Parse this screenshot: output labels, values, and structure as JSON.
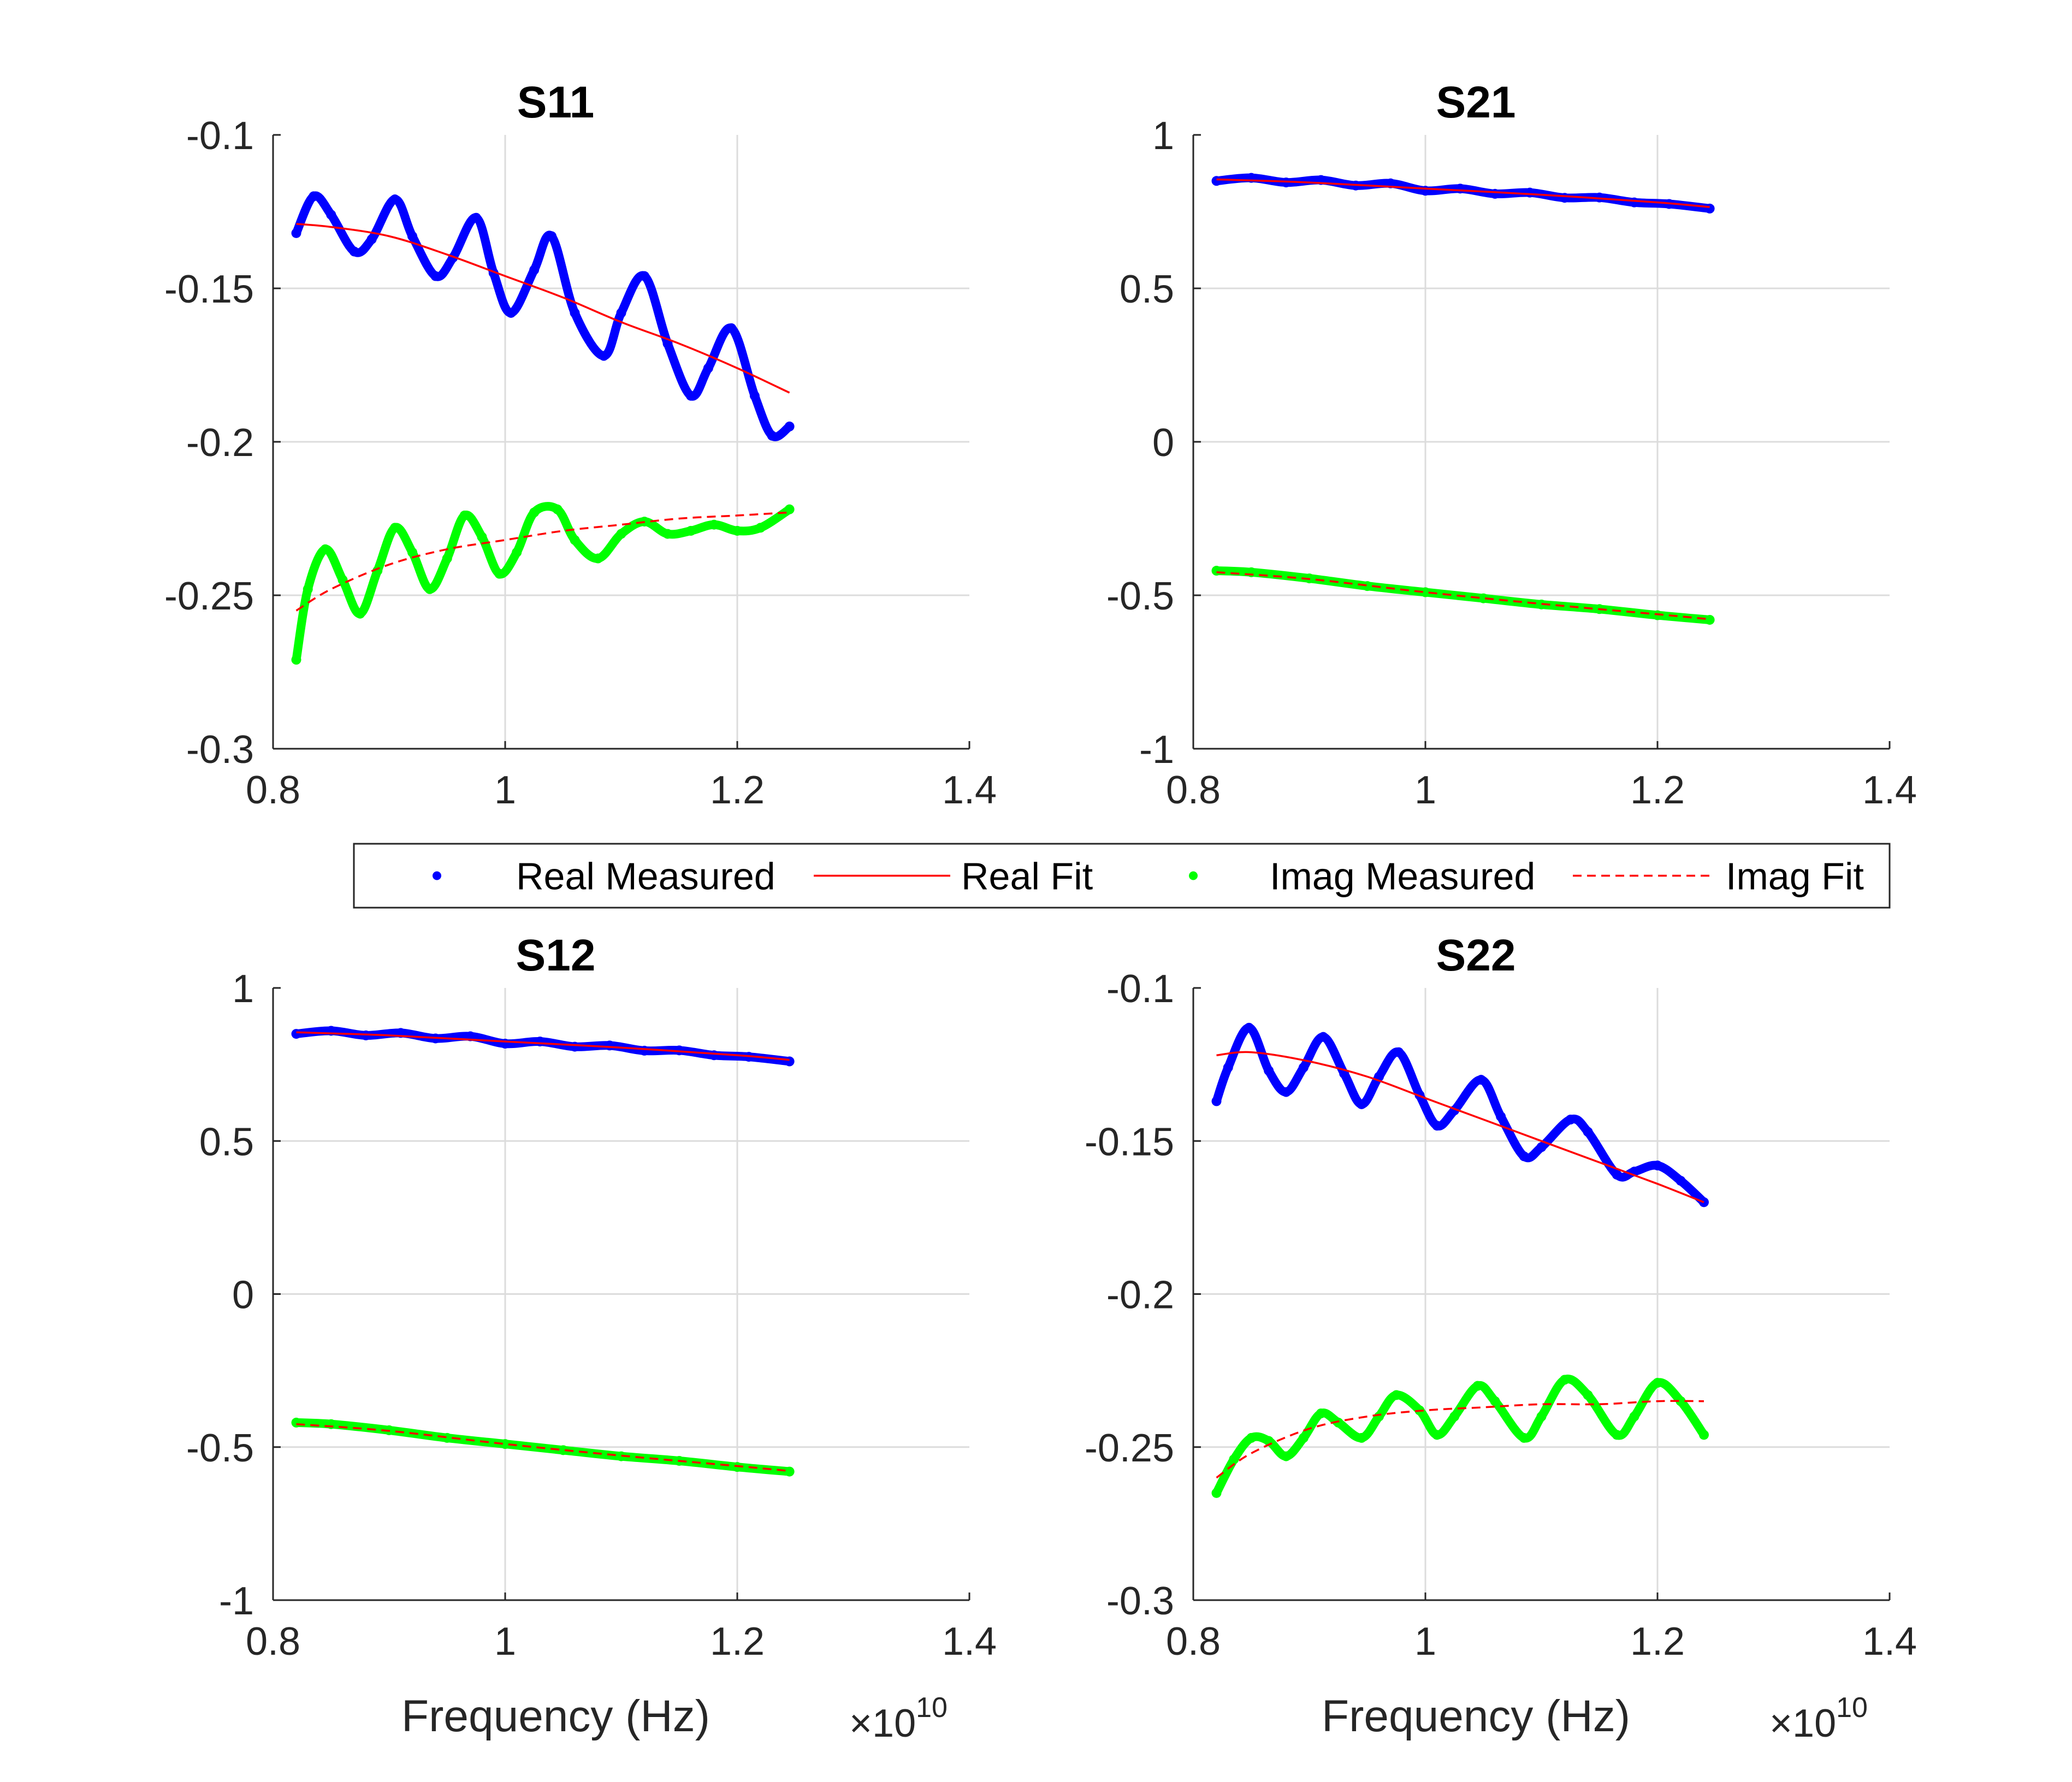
{
  "chart_data": [
    {
      "type": "line",
      "title": "S11",
      "xlabel": "",
      "ylabel": "",
      "xlim": [
        0.8,
        1.4
      ],
      "ylim": [
        -0.3,
        -0.1
      ],
      "xticks": [
        "0.8",
        "1",
        "1.2",
        "1.4"
      ],
      "yticks": [
        "-0.1",
        "-0.15",
        "-0.2",
        "-0.25",
        "-0.3"
      ],
      "x_exponent": "",
      "grid": true,
      "series": [
        {
          "name": "Real Measured",
          "color": "#0000ff",
          "style": "dots",
          "x": [
            0.82,
            0.835,
            0.85,
            0.87,
            0.885,
            0.905,
            0.92,
            0.94,
            0.955,
            0.975,
            0.99,
            1.005,
            1.025,
            1.04,
            1.06,
            1.085,
            1.1,
            1.12,
            1.14,
            1.16,
            1.175,
            1.195,
            1.215,
            1.23,
            1.245
          ],
          "y": [
            -0.132,
            -0.12,
            -0.126,
            -0.138,
            -0.134,
            -0.121,
            -0.133,
            -0.146,
            -0.14,
            -0.127,
            -0.145,
            -0.158,
            -0.144,
            -0.133,
            -0.158,
            -0.172,
            -0.158,
            -0.146,
            -0.168,
            -0.185,
            -0.176,
            -0.163,
            -0.185,
            -0.198,
            -0.195
          ]
        },
        {
          "name": "Real Fit",
          "color": "#ff0000",
          "style": "solid",
          "x": [
            0.82,
            0.85,
            0.9,
            0.95,
            1.0,
            1.05,
            1.1,
            1.15,
            1.2,
            1.245
          ],
          "y": [
            -0.129,
            -0.13,
            -0.133,
            -0.139,
            -0.146,
            -0.153,
            -0.161,
            -0.168,
            -0.176,
            -0.184
          ]
        },
        {
          "name": "Imag Measured",
          "color": "#00ff00",
          "style": "dots",
          "x": [
            0.82,
            0.83,
            0.845,
            0.86,
            0.875,
            0.89,
            0.905,
            0.92,
            0.935,
            0.95,
            0.965,
            0.98,
            0.995,
            1.01,
            1.025,
            1.045,
            1.06,
            1.08,
            1.1,
            1.12,
            1.14,
            1.16,
            1.18,
            1.2,
            1.22,
            1.245
          ],
          "y": [
            -0.271,
            -0.248,
            -0.235,
            -0.245,
            -0.256,
            -0.242,
            -0.228,
            -0.236,
            -0.248,
            -0.238,
            -0.224,
            -0.231,
            -0.243,
            -0.236,
            -0.223,
            -0.222,
            -0.232,
            -0.238,
            -0.23,
            -0.226,
            -0.23,
            -0.229,
            -0.227,
            -0.229,
            -0.228,
            -0.222
          ]
        },
        {
          "name": "Imag Fit",
          "color": "#ff0000",
          "style": "dashed",
          "x": [
            0.82,
            0.85,
            0.9,
            0.95,
            1.0,
            1.05,
            1.1,
            1.15,
            1.2,
            1.245
          ],
          "y": [
            -0.255,
            -0.248,
            -0.24,
            -0.235,
            -0.232,
            -0.229,
            -0.227,
            -0.225,
            -0.224,
            -0.223
          ]
        }
      ]
    },
    {
      "type": "line",
      "title": "S21",
      "xlabel": "",
      "ylabel": "",
      "xlim": [
        0.8,
        1.4
      ],
      "ylim": [
        -1,
        1
      ],
      "xticks": [
        "0.8",
        "1",
        "1.2",
        "1.4"
      ],
      "yticks": [
        "1",
        "0.5",
        "0",
        "-0.5",
        "-1"
      ],
      "x_exponent": "",
      "grid": true,
      "series": [
        {
          "name": "Real Measured",
          "color": "#0000ff",
          "style": "dots",
          "x": [
            0.82,
            0.85,
            0.88,
            0.91,
            0.94,
            0.97,
            1.0,
            1.03,
            1.06,
            1.09,
            1.12,
            1.15,
            1.18,
            1.21,
            1.245
          ],
          "y": [
            0.85,
            0.86,
            0.845,
            0.853,
            0.835,
            0.842,
            0.818,
            0.825,
            0.808,
            0.812,
            0.795,
            0.796,
            0.78,
            0.775,
            0.76
          ]
        },
        {
          "name": "Real Fit",
          "color": "#ff0000",
          "style": "solid",
          "x": [
            0.82,
            0.9,
            1.0,
            1.1,
            1.2,
            1.245
          ],
          "y": [
            0.855,
            0.845,
            0.825,
            0.805,
            0.78,
            0.765
          ]
        },
        {
          "name": "Imag Measured",
          "color": "#00ff00",
          "style": "dots",
          "x": [
            0.82,
            0.85,
            0.9,
            0.95,
            1.0,
            1.05,
            1.1,
            1.15,
            1.2,
            1.245
          ],
          "y": [
            -0.42,
            -0.425,
            -0.445,
            -0.47,
            -0.49,
            -0.51,
            -0.53,
            -0.545,
            -0.565,
            -0.58
          ]
        },
        {
          "name": "Imag Fit",
          "color": "#ff0000",
          "style": "dashed",
          "x": [
            0.82,
            0.9,
            1.0,
            1.1,
            1.2,
            1.245
          ],
          "y": [
            -0.425,
            -0.447,
            -0.49,
            -0.528,
            -0.562,
            -0.578
          ]
        }
      ]
    },
    {
      "type": "line",
      "title": "S12",
      "xlabel": "Frequency (Hz)",
      "ylabel": "",
      "xlim": [
        0.8,
        1.4
      ],
      "ylim": [
        -1,
        1
      ],
      "xticks": [
        "0.8",
        "1",
        "1.2",
        "1.4"
      ],
      "yticks": [
        "1",
        "0.5",
        "0",
        "-0.5",
        "-1"
      ],
      "x_exponent": "10",
      "grid": true,
      "series": [
        {
          "name": "Real Measured",
          "color": "#0000ff",
          "style": "dots",
          "x": [
            0.82,
            0.85,
            0.88,
            0.91,
            0.94,
            0.97,
            1.0,
            1.03,
            1.06,
            1.09,
            1.12,
            1.15,
            1.18,
            1.21,
            1.245
          ],
          "y": [
            0.85,
            0.86,
            0.845,
            0.853,
            0.835,
            0.842,
            0.818,
            0.825,
            0.808,
            0.812,
            0.795,
            0.796,
            0.78,
            0.775,
            0.76
          ]
        },
        {
          "name": "Real Fit",
          "color": "#ff0000",
          "style": "solid",
          "x": [
            0.82,
            0.9,
            1.0,
            1.1,
            1.2,
            1.245
          ],
          "y": [
            0.855,
            0.845,
            0.825,
            0.805,
            0.78,
            0.765
          ]
        },
        {
          "name": "Imag Measured",
          "color": "#00ff00",
          "style": "dots",
          "x": [
            0.82,
            0.85,
            0.9,
            0.95,
            1.0,
            1.05,
            1.1,
            1.15,
            1.2,
            1.245
          ],
          "y": [
            -0.42,
            -0.425,
            -0.445,
            -0.47,
            -0.49,
            -0.51,
            -0.53,
            -0.545,
            -0.565,
            -0.58
          ]
        },
        {
          "name": "Imag Fit",
          "color": "#ff0000",
          "style": "dashed",
          "x": [
            0.82,
            0.9,
            1.0,
            1.1,
            1.2,
            1.245
          ],
          "y": [
            -0.425,
            -0.447,
            -0.49,
            -0.528,
            -0.562,
            -0.578
          ]
        }
      ]
    },
    {
      "type": "line",
      "title": "S22",
      "xlabel": "Frequency (Hz)",
      "ylabel": "",
      "xlim": [
        0.8,
        1.4
      ],
      "ylim": [
        -0.3,
        -0.1
      ],
      "xticks": [
        "0.8",
        "1",
        "1.2",
        "1.4"
      ],
      "yticks": [
        "-0.1",
        "-0.15",
        "-0.2",
        "-0.25",
        "-0.3"
      ],
      "x_exponent": "10",
      "grid": true,
      "series": [
        {
          "name": "Real Measured",
          "color": "#0000ff",
          "style": "dots",
          "x": [
            0.82,
            0.83,
            0.848,
            0.865,
            0.88,
            0.895,
            0.912,
            0.93,
            0.945,
            0.96,
            0.977,
            0.995,
            1.01,
            1.025,
            1.048,
            1.065,
            1.085,
            1.1,
            1.125,
            1.14,
            1.165,
            1.18,
            1.2,
            1.22,
            1.24
          ],
          "y": [
            -0.137,
            -0.126,
            -0.113,
            -0.127,
            -0.134,
            -0.126,
            -0.116,
            -0.128,
            -0.138,
            -0.129,
            -0.121,
            -0.135,
            -0.145,
            -0.14,
            -0.13,
            -0.142,
            -0.155,
            -0.152,
            -0.143,
            -0.147,
            -0.161,
            -0.16,
            -0.158,
            -0.163,
            -0.17
          ]
        },
        {
          "name": "Real Fit",
          "color": "#ff0000",
          "style": "solid",
          "x": [
            0.82,
            0.85,
            0.9,
            0.95,
            1.0,
            1.05,
            1.1,
            1.15,
            1.2,
            1.24
          ],
          "y": [
            -0.122,
            -0.121,
            -0.124,
            -0.129,
            -0.136,
            -0.143,
            -0.15,
            -0.157,
            -0.164,
            -0.17
          ]
        },
        {
          "name": "Imag Measured",
          "color": "#00ff00",
          "style": "dots",
          "x": [
            0.82,
            0.835,
            0.85,
            0.865,
            0.88,
            0.895,
            0.91,
            0.925,
            0.945,
            0.96,
            0.975,
            0.995,
            1.01,
            1.025,
            1.045,
            1.06,
            1.085,
            1.1,
            1.12,
            1.14,
            1.165,
            1.18,
            1.2,
            1.22,
            1.24
          ],
          "y": [
            -0.265,
            -0.254,
            -0.247,
            -0.248,
            -0.253,
            -0.247,
            -0.239,
            -0.242,
            -0.247,
            -0.24,
            -0.233,
            -0.238,
            -0.246,
            -0.24,
            -0.23,
            -0.235,
            -0.247,
            -0.24,
            -0.228,
            -0.233,
            -0.246,
            -0.24,
            -0.229,
            -0.235,
            -0.246
          ]
        },
        {
          "name": "Imag Fit",
          "color": "#ff0000",
          "style": "dashed",
          "x": [
            0.82,
            0.85,
            0.9,
            0.95,
            1.0,
            1.05,
            1.1,
            1.15,
            1.2,
            1.24
          ],
          "y": [
            -0.26,
            -0.252,
            -0.244,
            -0.24,
            -0.238,
            -0.237,
            -0.236,
            -0.236,
            -0.235,
            -0.235
          ]
        }
      ]
    }
  ],
  "legend": {
    "placement": "center",
    "entries": [
      {
        "label": "Real Measured",
        "color": "#0000ff",
        "style": "dots"
      },
      {
        "label": "Real Fit",
        "color": "#ff0000",
        "style": "solid"
      },
      {
        "label": "Imag Measured",
        "color": "#00ff00",
        "style": "dots"
      },
      {
        "label": "Imag Fit",
        "color": "#ff0000",
        "style": "dashed"
      }
    ]
  }
}
